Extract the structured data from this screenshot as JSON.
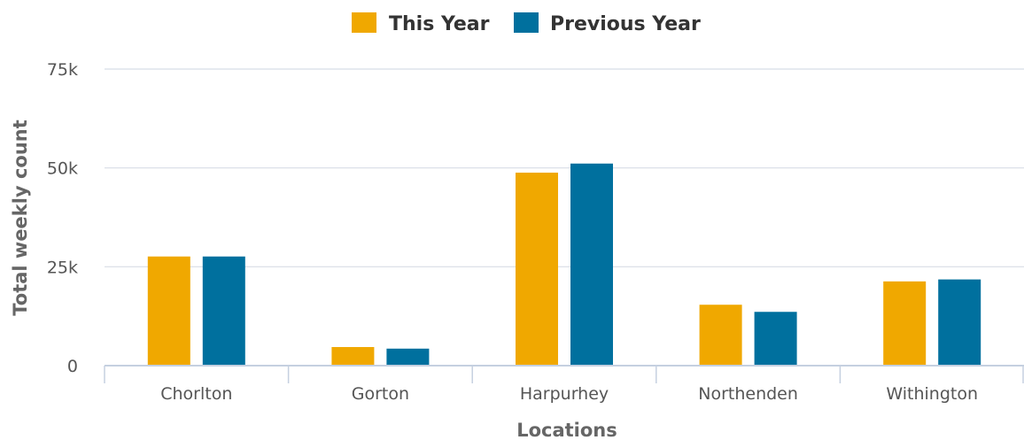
{
  "chart_data": {
    "type": "bar",
    "categories": [
      "Chorlton",
      "Gorton",
      "Harpurhey",
      "Northenden",
      "Withington"
    ],
    "series": [
      {
        "name": "This Year",
        "color": "#f0a800",
        "values": [
          27600,
          4700,
          48800,
          15400,
          21300
        ]
      },
      {
        "name": "Previous Year",
        "color": "#00709e",
        "values": [
          27600,
          4300,
          51100,
          13600,
          21800
        ]
      }
    ],
    "xlabel": "Locations",
    "ylabel": "Total weekly count",
    "ylim": [
      0,
      75000
    ],
    "yticks": [
      {
        "value": 0,
        "label": "0"
      },
      {
        "value": 25000,
        "label": "25k"
      },
      {
        "value": 50000,
        "label": "50k"
      },
      {
        "value": 75000,
        "label": "75k"
      }
    ],
    "grid": true,
    "legend": "top-center"
  }
}
